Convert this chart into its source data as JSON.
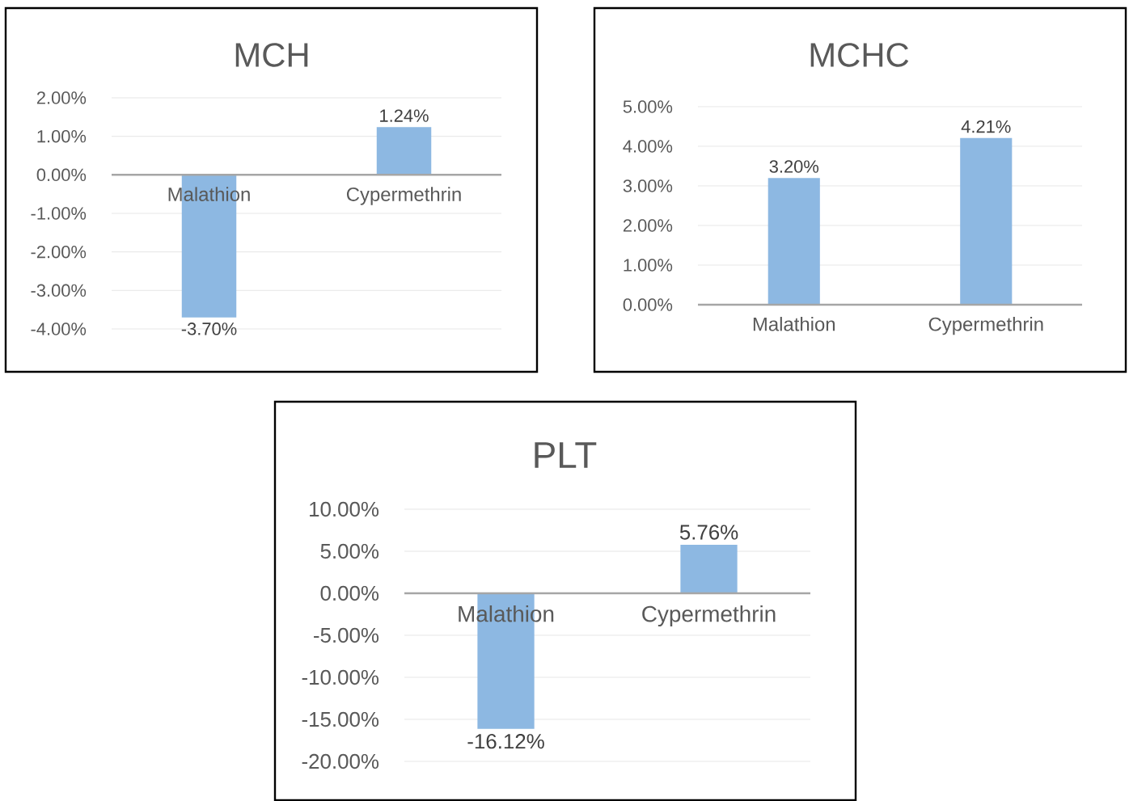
{
  "chart_data": [
    {
      "type": "bar",
      "title": "MCH",
      "categories": [
        "Malathion",
        "Cypermethrin"
      ],
      "values": [
        -3.7,
        1.24
      ],
      "value_labels": [
        "-3.70%",
        "1.24%"
      ],
      "color": "#8db8e2",
      "ylim": [
        -4,
        2
      ],
      "yticks": [
        {
          "value": -4,
          "label": "-4.00%"
        },
        {
          "value": -3,
          "label": "-3.00%"
        },
        {
          "value": -2,
          "label": "-2.00%"
        },
        {
          "value": -1,
          "label": "-1.00%"
        },
        {
          "value": 0,
          "label": "0.00%"
        },
        {
          "value": 1,
          "label": "1.00%"
        },
        {
          "value": 2,
          "label": "2.00%"
        }
      ],
      "grid": "y"
    },
    {
      "type": "bar",
      "title": "MCHC",
      "categories": [
        "Malathion",
        "Cypermethrin"
      ],
      "values": [
        3.2,
        4.21
      ],
      "value_labels": [
        "3.20%",
        "4.21%"
      ],
      "color": "#8db8e2",
      "ylim": [
        0,
        5
      ],
      "yticks": [
        {
          "value": 0,
          "label": "0.00%"
        },
        {
          "value": 1,
          "label": "1.00%"
        },
        {
          "value": 2,
          "label": "2.00%"
        },
        {
          "value": 3,
          "label": "3.00%"
        },
        {
          "value": 4,
          "label": "4.00%"
        },
        {
          "value": 5,
          "label": "5.00%"
        }
      ],
      "grid": "y"
    },
    {
      "type": "bar",
      "title": "PLT",
      "categories": [
        "Malathion",
        "Cypermethrin"
      ],
      "values": [
        -16.12,
        5.76
      ],
      "value_labels": [
        "-16.12%",
        "5.76%"
      ],
      "color": "#8db8e2",
      "ylim": [
        -20,
        10
      ],
      "yticks": [
        {
          "value": -20,
          "label": "-20.00%"
        },
        {
          "value": -15,
          "label": "-15.00%"
        },
        {
          "value": -10,
          "label": "-10.00%"
        },
        {
          "value": -5,
          "label": "-5.00%"
        },
        {
          "value": 0,
          "label": "0.00%"
        },
        {
          "value": 5,
          "label": "5.00%"
        },
        {
          "value": 10,
          "label": "10.00%"
        }
      ],
      "grid": "y"
    }
  ]
}
